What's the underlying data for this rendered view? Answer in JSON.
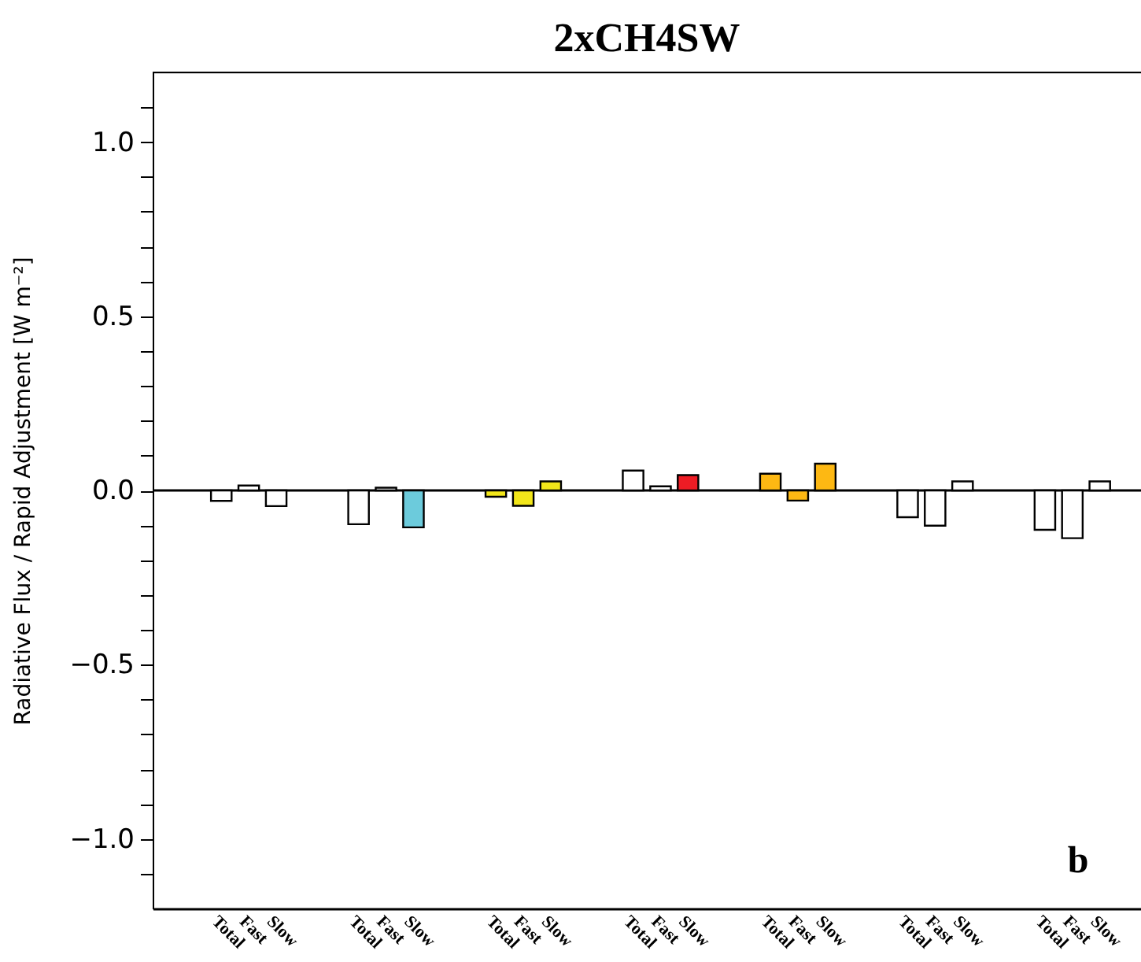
{
  "chart_data": {
    "type": "bar",
    "title": "2xCH4SW",
    "ylabel": "Radiative Flux / Rapid Adjustment [W m⁻²]",
    "categories": [
      null,
      null,
      "Total",
      "Fast",
      "Slow",
      null,
      null,
      "Total",
      "Fast",
      "Slow",
      null,
      null,
      "Total",
      "Fast",
      "Slow",
      null,
      null,
      "Total",
      "Fast",
      "Slow",
      null,
      null,
      "Total",
      "Fast",
      "Slow",
      null,
      null,
      "Total",
      "Fast",
      "Slow",
      null,
      null,
      "Total",
      "Fast",
      "Slow",
      null
    ],
    "values": [
      null,
      null,
      -0.03,
      0.014,
      -0.045,
      null,
      null,
      -0.097,
      0.008,
      -0.106,
      null,
      null,
      -0.018,
      -0.044,
      0.026,
      null,
      null,
      0.057,
      0.012,
      0.044,
      null,
      null,
      0.048,
      -0.029,
      0.077,
      null,
      null,
      -0.077,
      -0.101,
      0.026,
      null,
      null,
      -0.113,
      -0.137,
      0.026,
      null
    ],
    "colors": [
      "#ffffff",
      "#ffffff",
      "#ffffff",
      "#ffffff",
      "#ffffff",
      "#ffffff",
      "#ffffff",
      "#ffffff",
      "#ffffff",
      "#6ccbdc",
      "#ffffff",
      "#ffffff",
      "#f2e61a",
      "#f2e61a",
      "#f2e61a",
      "#ffffff",
      "#ffffff",
      "#ffffff",
      "#ffffff",
      "#ee1c24",
      "#ffffff",
      "#ffffff",
      "#fdb813",
      "#fdb813",
      "#fdb813",
      "#ffffff",
      "#ffffff",
      "#ffffff",
      "#ffffff",
      "#ffffff",
      "#ffffff",
      "#ffffff",
      "#ffffff",
      "#ffffff",
      "#ffffff",
      "#ffffff"
    ],
    "ylim": [
      -1.2,
      1.2
    ],
    "yticks": [
      {
        "value": -1.1,
        "label": null
      },
      {
        "value": -1,
        "label": "−1.0"
      },
      {
        "value": -0.9,
        "label": null
      },
      {
        "value": -0.8,
        "label": null
      },
      {
        "value": -0.7,
        "label": null
      },
      {
        "value": -0.6,
        "label": null
      },
      {
        "value": -0.5,
        "label": "−0.5"
      },
      {
        "value": -0.4,
        "label": null
      },
      {
        "value": -0.3,
        "label": null
      },
      {
        "value": -0.2,
        "label": null
      },
      {
        "value": -0.1,
        "label": null
      },
      {
        "value": 0,
        "label": "0.0"
      },
      {
        "value": 0.1,
        "label": null
      },
      {
        "value": 0.2,
        "label": null
      },
      {
        "value": 0.3,
        "label": null
      },
      {
        "value": 0.4,
        "label": null
      },
      {
        "value": 0.5,
        "label": "0.5"
      },
      {
        "value": 0.6,
        "label": null
      },
      {
        "value": 0.7,
        "label": null
      },
      {
        "value": 0.8,
        "label": null
      },
      {
        "value": 0.9,
        "label": null
      },
      {
        "value": 1,
        "label": "1.0"
      },
      {
        "value": 1.1,
        "label": null
      }
    ],
    "ref_lines": [
      {
        "axis": "y",
        "value": 0
      }
    ],
    "annotations": [
      "b"
    ],
    "grid": false
  }
}
